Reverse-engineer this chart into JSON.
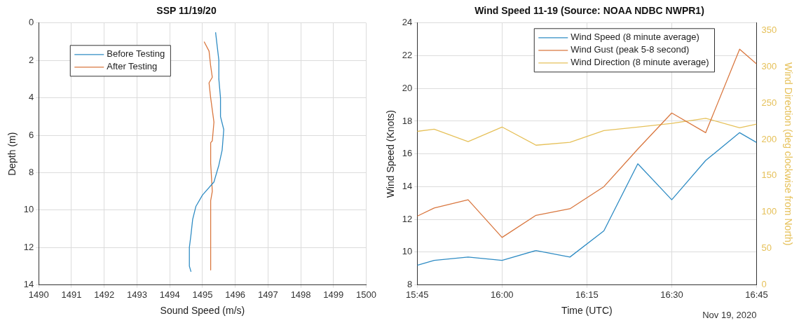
{
  "chart_data": [
    {
      "type": "line",
      "title": "SSP 11/19/20",
      "xlabel": "Sound Speed (m/s)",
      "ylabel": "Depth (m)",
      "xlim": [
        1490,
        1500
      ],
      "xticks": [
        1490,
        1491,
        1492,
        1493,
        1494,
        1495,
        1496,
        1497,
        1498,
        1499,
        1500
      ],
      "ylim": [
        14,
        0
      ],
      "yticks": [
        0,
        2,
        4,
        6,
        8,
        10,
        12,
        14
      ],
      "grid": true,
      "legend": "top left",
      "series": [
        {
          "name": "Before Testing",
          "color": "#2f8cc4",
          "x": [
            1495.4,
            1495.5,
            1495.5,
            1495.55,
            1495.55,
            1495.65,
            1495.6,
            1495.5,
            1495.35,
            1495.0,
            1494.8,
            1494.7,
            1494.65,
            1494.6,
            1494.6,
            1494.65
          ],
          "values": [
            0.5,
            2.0,
            3.0,
            4.0,
            5.0,
            5.7,
            6.8,
            7.6,
            8.5,
            9.2,
            9.8,
            10.5,
            11.3,
            12.0,
            13.0,
            13.3
          ]
        },
        {
          "name": "After Testing",
          "color": "#d9773f",
          "x": [
            1495.05,
            1495.2,
            1495.25,
            1495.3,
            1495.2,
            1495.25,
            1495.35,
            1495.3,
            1495.25,
            1495.25,
            1495.3,
            1495.25,
            1495.25
          ],
          "values": [
            1.0,
            1.5,
            2.3,
            2.9,
            3.2,
            4.0,
            5.3,
            6.3,
            6.4,
            7.5,
            9.0,
            9.5,
            13.2
          ]
        }
      ]
    },
    {
      "type": "line",
      "title": "Wind Speed 11-19 (Source: NOAA NDBC NWPR1)",
      "xlabel": "Time (UTC)",
      "ylabel": "Wind Speed (Knots)",
      "y2label": "Wind Direction (deg clockwise from North)",
      "x": [
        "2020-11-19T15:45",
        "2020-11-19T15:48",
        "2020-11-19T15:54",
        "2020-11-19T16:00",
        "2020-11-19T16:06",
        "2020-11-19T16:12",
        "2020-11-19T16:18",
        "2020-11-19T16:24",
        "2020-11-19T16:30",
        "2020-11-19T16:36",
        "2020-11-19T16:42",
        "2020-11-19T16:45"
      ],
      "xlim": [
        "2020-11-19T15:45",
        "2020-11-19T16:45"
      ],
      "xticks": [
        {
          "value": "2020-11-19T15:45",
          "label": "15:45"
        },
        {
          "value": "2020-11-19T16:00",
          "label": "16:00"
        },
        {
          "value": "2020-11-19T16:15",
          "label": "16:15"
        },
        {
          "value": "2020-11-19T16:30",
          "label": "16:30"
        },
        {
          "value": "2020-11-19T16:45",
          "label": "16:45"
        }
      ],
      "ylim": [
        8,
        24
      ],
      "yticks": [
        8,
        10,
        12,
        14,
        16,
        18,
        20,
        22,
        24
      ],
      "y2lim": [
        0,
        360
      ],
      "y2ticks": [
        0,
        50,
        100,
        150,
        200,
        250,
        300,
        350
      ],
      "grid": true,
      "legend": "top right",
      "annotations": [
        "Nov 19, 2020"
      ],
      "series": [
        {
          "name": "Wind Speed (8 minute average)",
          "color": "#2f8cc4",
          "values": [
            9.2,
            9.5,
            9.7,
            9.5,
            10.1,
            9.7,
            11.3,
            15.4,
            13.2,
            15.6,
            17.3,
            16.7
          ]
        },
        {
          "name": "Wind Gust (peak 5-8 second)",
          "color": "#d9773f",
          "values": [
            12.2,
            12.7,
            13.2,
            10.9,
            12.25,
            12.65,
            14.0,
            16.3,
            18.5,
            17.3,
            22.4,
            21.5
          ]
        },
        {
          "name": "Wind Direction (8 minute average)",
          "color": "#e6c15a",
          "axis": "y2",
          "values": [
            211,
            214,
            197,
            217,
            192,
            196,
            212,
            217,
            222,
            229,
            216,
            221
          ]
        }
      ]
    }
  ]
}
